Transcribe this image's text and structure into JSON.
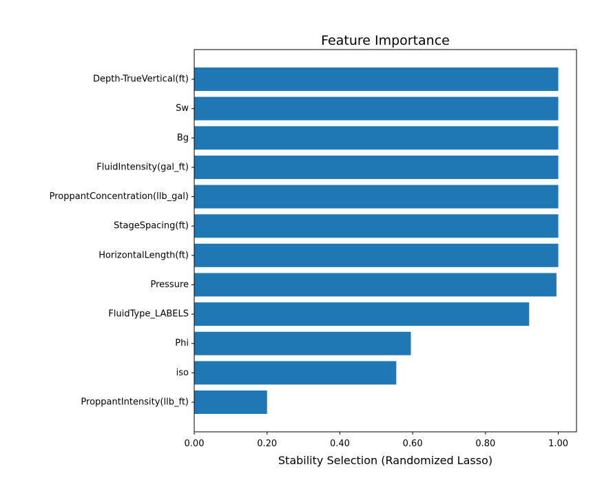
{
  "chart_data": {
    "type": "bar",
    "orientation": "horizontal",
    "title": "Feature Importance",
    "xlabel": "Stability Selection (Randomized Lasso)",
    "ylabel": "",
    "xlim": [
      0,
      1.05
    ],
    "xticks": [
      0.0,
      0.2,
      0.4,
      0.6,
      0.8,
      1.0
    ],
    "xtick_labels": [
      "0.00",
      "0.20",
      "0.40",
      "0.60",
      "0.80",
      "1.00"
    ],
    "grid": false,
    "bar_color": "#1f77b4",
    "categories": [
      "Depth-TrueVertical(ft)",
      "Sw",
      "Bg",
      "FluidIntensity(gal_ft)",
      "ProppantConcentration(llb_gal)",
      "StageSpacing(ft)",
      "HorizontalLength(ft)",
      "Pressure",
      "FluidType_LABELS",
      "Phi",
      "iso",
      "ProppantIntensity(llb_ft)"
    ],
    "values": [
      1.0,
      1.0,
      1.0,
      1.0,
      1.0,
      1.0,
      1.0,
      0.995,
      0.92,
      0.595,
      0.555,
      0.2
    ]
  }
}
